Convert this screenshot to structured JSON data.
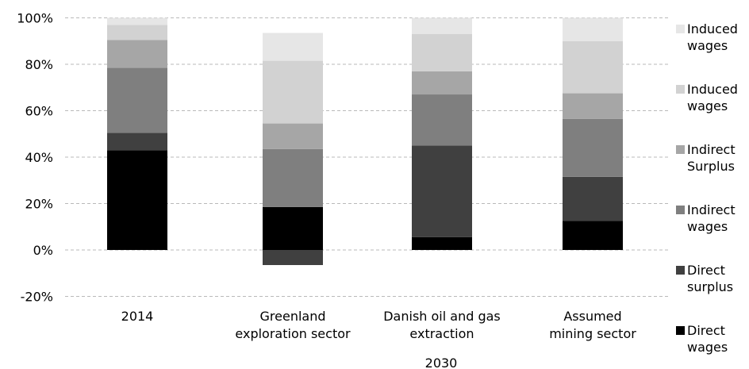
{
  "chart_data": {
    "type": "bar",
    "stacked": true,
    "categories": [
      "2014",
      "Greenland\nexploration sector",
      "Danish oil and gas\nextraction",
      "Assumed\nmining sector"
    ],
    "group_label": "2030",
    "ylim": [
      -20,
      100
    ],
    "y_ticks": [
      "100%",
      "80%",
      "60%",
      "40%",
      "20%",
      "0%",
      "-20%"
    ],
    "y_tick_values": [
      100,
      80,
      60,
      40,
      20,
      0,
      -20
    ],
    "grid": "horizontal dashed",
    "legend_position": "right",
    "series": [
      {
        "name": "Direct\nwages",
        "color": "#000000",
        "values": [
          43,
          18.5,
          5.5,
          12.5
        ]
      },
      {
        "name": "Direct\nsurplus",
        "color": "#404040",
        "values": [
          7.5,
          -6.5,
          39.5,
          19
        ]
      },
      {
        "name": "Indirect\nwages",
        "color": "#7f7f7f",
        "values": [
          28,
          25,
          22,
          25
        ]
      },
      {
        "name": "Indirect\nSurplus",
        "color": "#a6a6a6",
        "values": [
          12,
          11,
          10,
          11
        ]
      },
      {
        "name": "Induced\nwages",
        "color": "#d2d2d2",
        "values": [
          6.5,
          27,
          16,
          22.5
        ]
      },
      {
        "name": "Induced\nwages",
        "color": "#e6e6e6",
        "values": [
          3,
          12,
          7,
          10
        ]
      }
    ]
  }
}
